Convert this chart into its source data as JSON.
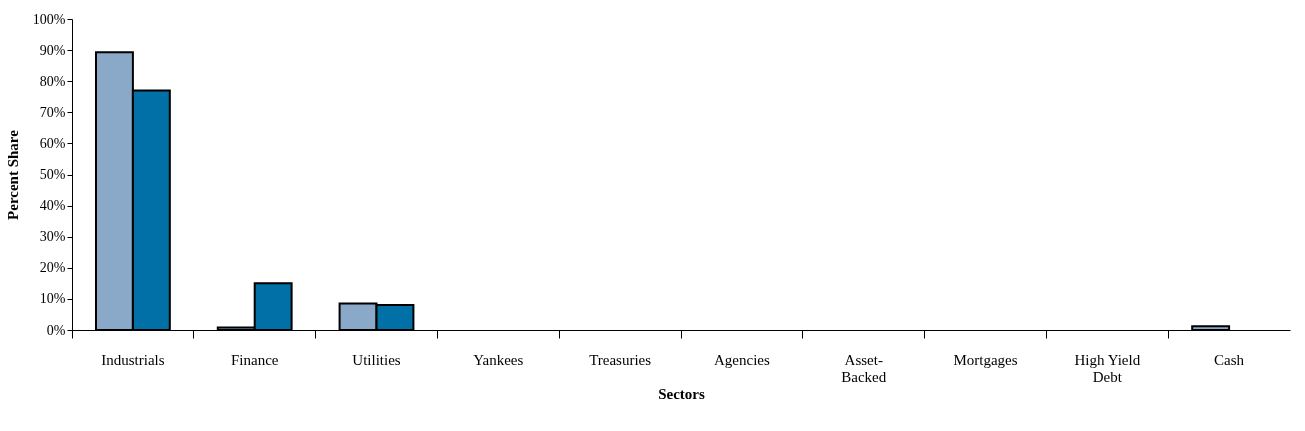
{
  "chart_data": {
    "type": "bar",
    "xlabel": "Sectors",
    "ylabel": "Percent Share",
    "categories": [
      "Industrials",
      "Finance",
      "Utilities",
      "Yankees",
      "Treasuries",
      "Agencies",
      "Asset-Backed",
      "Mortgages",
      "High Yield Debt",
      "Cash"
    ],
    "series": [
      {
        "color": "#8aa8c8",
        "values": [
          89.3,
          0.8,
          8.5,
          null,
          null,
          null,
          null,
          null,
          null,
          1.2
        ]
      },
      {
        "color": "#0070a6",
        "values": [
          77,
          15,
          8,
          null,
          null,
          null,
          null,
          null,
          null,
          null
        ]
      }
    ],
    "ylim": [
      0,
      100
    ],
    "yticks": [
      {
        "value": 0,
        "label": "0%"
      },
      {
        "value": 10,
        "label": "10%"
      },
      {
        "value": 20,
        "label": "20%"
      },
      {
        "value": 30,
        "label": "30%"
      },
      {
        "value": 40,
        "label": "40%"
      },
      {
        "value": 50,
        "label": "50%"
      },
      {
        "value": 60,
        "label": "60%"
      },
      {
        "value": 70,
        "label": "70%"
      },
      {
        "value": 80,
        "label": "80%"
      },
      {
        "value": 90,
        "label": "90%"
      },
      {
        "value": 100,
        "label": "100%"
      }
    ],
    "grid": false,
    "legend": false
  }
}
